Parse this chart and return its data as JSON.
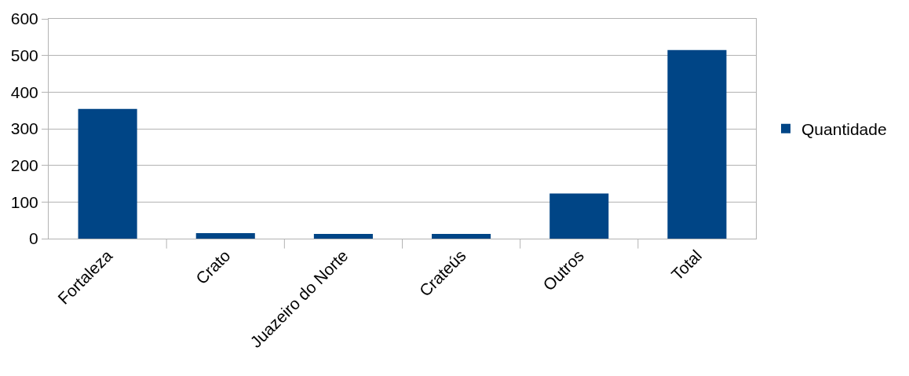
{
  "chart_data": {
    "type": "bar",
    "categories": [
      "Fortaleza",
      "Crato",
      "Juazeiro do Norte",
      "Crateús",
      "Outros",
      "Total"
    ],
    "series": [
      {
        "name": "Quantidade",
        "color": "#004586",
        "values": [
          354,
          15,
          13,
          13,
          123,
          515
        ]
      }
    ],
    "ylim": [
      0,
      600
    ],
    "yticks": [
      0,
      100,
      200,
      300,
      400,
      500,
      600
    ],
    "grid": "y",
    "legend": "right"
  }
}
